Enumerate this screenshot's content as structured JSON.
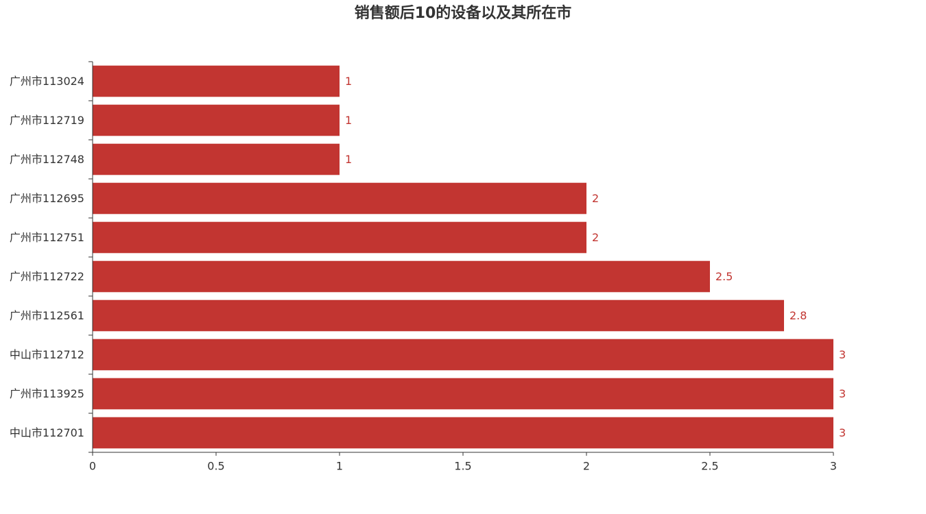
{
  "chart_data": {
    "type": "bar",
    "orientation": "horizontal",
    "title": "销售额后10的设备以及其所在市",
    "categories": [
      "广州市113024",
      "广州市112719",
      "广州市112748",
      "广州市112695",
      "广州市112751",
      "广州市112722",
      "广州市112561",
      "中山市112712",
      "广州市113925",
      "中山市112701"
    ],
    "values": [
      1,
      1,
      1,
      2,
      2,
      2.5,
      2.8,
      3,
      3,
      3
    ],
    "xlim": [
      0,
      3
    ],
    "xticks": [
      0,
      0.5,
      1,
      1.5,
      2,
      2.5,
      3
    ],
    "xtick_labels": [
      "0",
      "0.5",
      "1",
      "1.5",
      "2",
      "2.5",
      "3"
    ],
    "data_labels": [
      "1",
      "1",
      "1",
      "2",
      "2",
      "2.5",
      "2.8",
      "3",
      "3",
      "3"
    ],
    "bar_color": "#c23531",
    "label_color": "#c23531",
    "grid": false,
    "legend": "none"
  }
}
